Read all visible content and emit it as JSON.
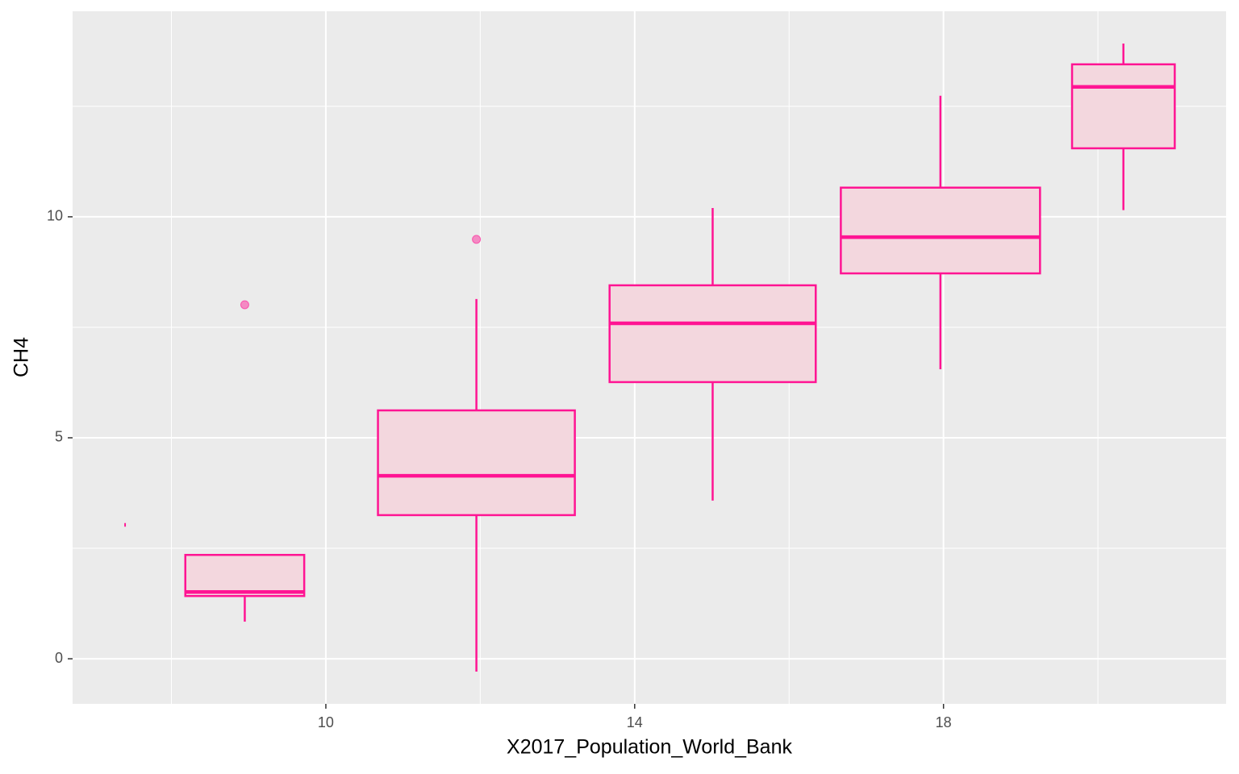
{
  "chart_data": {
    "type": "boxplot",
    "x_label": "X2017_Population_World_Bank",
    "y_label": "CH4",
    "xlim": [
      6.72,
      21.66
    ],
    "ylim": [
      -1.02,
      14.65
    ],
    "xticks": [
      10,
      14,
      18
    ],
    "yticks": [
      0,
      5,
      10
    ],
    "x_minor_grid": [
      8,
      12,
      16,
      20
    ],
    "y_minor_grid": [
      2.5,
      7.5,
      12.5
    ],
    "grid": true,
    "color": "#ff1493",
    "fill": "#f3d7de",
    "boxes": [
      {
        "x": 7.4,
        "width": 0.02,
        "whisker_low": 3.03,
        "q1": 3.03,
        "median": 3.03,
        "q3": 3.03,
        "whisker_high": 3.03,
        "outliers": []
      },
      {
        "x": 8.95,
        "width": 1.54,
        "whisker_low": 0.84,
        "q1": 1.42,
        "median": 1.51,
        "q3": 2.35,
        "whisker_high": 2.35,
        "outliers": [
          8.01
        ]
      },
      {
        "x": 11.95,
        "width": 2.55,
        "whisker_low": -0.29,
        "q1": 3.25,
        "median": 4.14,
        "q3": 5.62,
        "whisker_high": 8.14,
        "outliers": [
          9.49
        ]
      },
      {
        "x": 15.01,
        "width": 2.67,
        "whisker_low": 3.58,
        "q1": 6.26,
        "median": 7.59,
        "q3": 8.45,
        "whisker_high": 10.2,
        "outliers": []
      },
      {
        "x": 17.96,
        "width": 2.58,
        "whisker_low": 6.55,
        "q1": 8.72,
        "median": 9.54,
        "q3": 10.66,
        "whisker_high": 12.74,
        "outliers": []
      },
      {
        "x": 20.33,
        "width": 1.33,
        "whisker_low": 10.15,
        "q1": 11.55,
        "median": 12.94,
        "q3": 13.45,
        "whisker_high": 13.92,
        "outliers": []
      }
    ]
  }
}
